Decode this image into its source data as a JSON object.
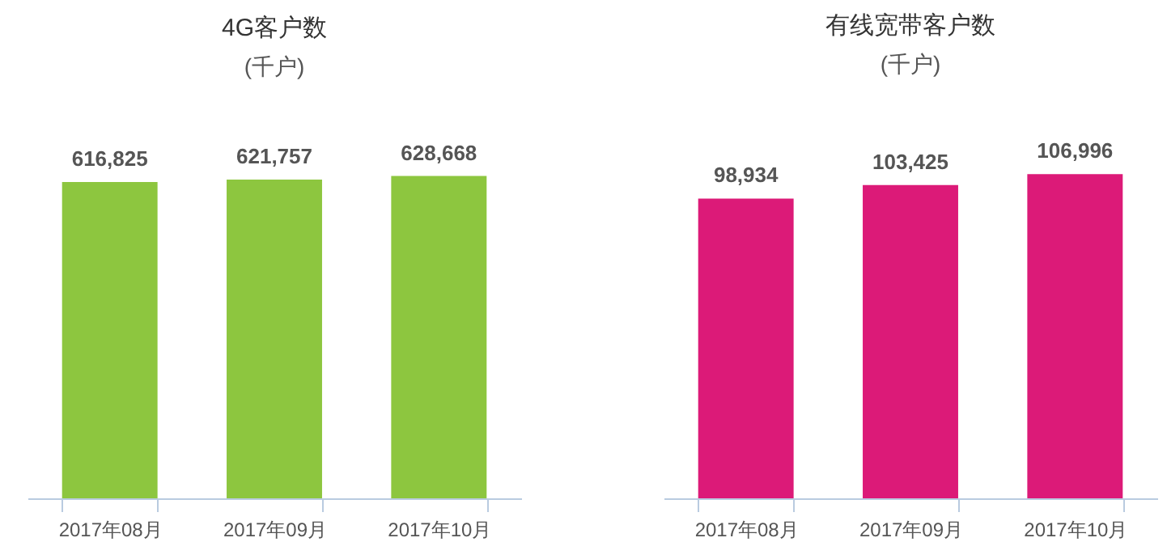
{
  "chart_data": [
    {
      "type": "bar",
      "title": "4G客户数",
      "subtitle": "(千户)",
      "categories": [
        "2017年08月",
        "2017年09月",
        "2017年10月"
      ],
      "values": [
        616825,
        621757,
        628668
      ],
      "value_labels": [
        "616,825",
        "621,757",
        "628,668"
      ],
      "color": "#8dc63f",
      "tick_labels": "x"
    },
    {
      "type": "bar",
      "title": "有线宽带客户数",
      "subtitle": "(千户)",
      "categories": [
        "2017年08月",
        "2017年09月",
        "2017年10月"
      ],
      "values": [
        98934,
        103425,
        106996
      ],
      "value_labels": [
        "98,934",
        "103,425",
        "106,996"
      ],
      "color": "#dc1a78",
      "tick_labels": "x"
    }
  ]
}
